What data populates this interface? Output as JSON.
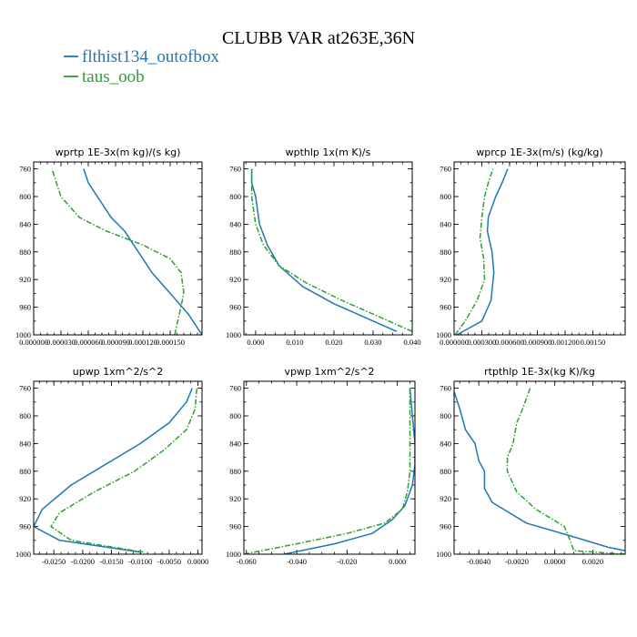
{
  "figure": {
    "title": "CLUBB VAR at263E,36N",
    "legend": [
      {
        "label": "flthist134_outofbox",
        "color": "#1f77b4",
        "dash": "solid"
      },
      {
        "label": "taus_oob",
        "color": "#2ca02c",
        "dash": "dashdot"
      }
    ]
  },
  "chart_data": [
    {
      "type": "line",
      "title": "wprtp  1E-3x(m kg)/(s kg)",
      "xlim": [
        0.0,
        0.000185
      ],
      "ylim": [
        1000,
        750
      ],
      "xticks": [
        0.0,
        3e-05,
        6e-05,
        9e-05,
        0.00012,
        0.00015
      ],
      "xtick_labels": [
        "0.000000",
        "0.000030",
        "0.000060",
        "0.000090",
        "0.000120",
        "0.000150"
      ],
      "yticks": [
        760,
        800,
        840,
        880,
        920,
        960,
        1000
      ],
      "ytick_labels": [
        "760",
        "800",
        "840",
        "880",
        "920",
        "960",
        "1000"
      ],
      "series": [
        {
          "name": "flthist134_outofbox",
          "x": [
            0.000185,
            0.00017,
            0.00015,
            0.00013,
            0.000115,
            0.0001,
            8.5e-05,
            7e-05,
            6e-05,
            5.5e-05
          ],
          "y": [
            1000,
            970,
            940,
            910,
            880,
            850,
            830,
            800,
            780,
            760
          ]
        },
        {
          "name": "taus_oob",
          "x": [
            0.000155,
            0.00016,
            0.000165,
            0.000162,
            0.00015,
            0.00012,
            8e-05,
            5e-05,
            3e-05,
            2e-05
          ],
          "y": [
            1000,
            970,
            940,
            910,
            890,
            870,
            850,
            830,
            800,
            760
          ]
        }
      ]
    },
    {
      "type": "line",
      "title": "wpthlp  1x(m K)/s",
      "xlim": [
        -0.003,
        0.04
      ],
      "ylim": [
        1000,
        750
      ],
      "xticks": [
        0.0,
        0.01,
        0.02,
        0.03,
        0.04
      ],
      "xtick_labels": [
        "0.000",
        "0.010",
        "0.020",
        "0.030",
        "0.040"
      ],
      "yticks": [
        760,
        800,
        840,
        880,
        920,
        960,
        1000
      ],
      "ytick_labels": [
        "760",
        "800",
        "840",
        "880",
        "920",
        "960",
        "1000"
      ],
      "series": [
        {
          "name": "flthist134_outofbox",
          "x": [
            0.036,
            0.03,
            0.02,
            0.012,
            0.006,
            0.003,
            0.001,
            0.0,
            -0.001,
            -0.001
          ],
          "y": [
            995,
            980,
            955,
            930,
            900,
            870,
            840,
            800,
            780,
            760
          ]
        },
        {
          "name": "taus_oob",
          "x": [
            0.04,
            0.032,
            0.022,
            0.013,
            0.006,
            0.002,
            0.0,
            -0.001,
            -0.001,
            -0.001
          ],
          "y": [
            995,
            975,
            950,
            925,
            900,
            870,
            840,
            800,
            780,
            760
          ]
        }
      ]
    },
    {
      "type": "line",
      "title": "wprcp  1E-3x(m/s) (kg/kg)",
      "xlim": [
        0.0,
        0.00185
      ],
      "ylim": [
        1000,
        750
      ],
      "xticks": [
        0.0,
        0.0003,
        0.0006,
        0.0009,
        0.0012,
        0.0015
      ],
      "xtick_labels": [
        "0.000000",
        "0.000300",
        "0.000600",
        "0.000900",
        "0.001200",
        "0.00150"
      ],
      "yticks": [
        760,
        800,
        840,
        880,
        920,
        960,
        1000
      ],
      "ytick_labels": [
        "760",
        "800",
        "840",
        "880",
        "920",
        "960",
        "1000"
      ],
      "series": [
        {
          "name": "flthist134_outofbox",
          "x": [
            3e-05,
            0.0003,
            0.0004,
            0.00043,
            0.00041,
            0.00036,
            0.00037,
            0.00045,
            0.00052,
            0.00058
          ],
          "y": [
            1000,
            980,
            950,
            910,
            880,
            850,
            830,
            800,
            780,
            760
          ]
        },
        {
          "name": "taus_oob",
          "x": [
            1e-05,
            0.00012,
            0.00025,
            0.00033,
            0.00032,
            0.00028,
            0.0003,
            0.00033,
            0.00037,
            0.00042
          ],
          "y": [
            1000,
            980,
            950,
            920,
            890,
            860,
            830,
            800,
            780,
            760
          ]
        }
      ]
    },
    {
      "type": "line",
      "title": "upwp  1xm^2/s^2",
      "xlim": [
        -0.0285,
        0.0007
      ],
      "ylim": [
        1000,
        750
      ],
      "xticks": [
        -0.025,
        -0.02,
        -0.015,
        -0.01,
        -0.005,
        0.0
      ],
      "xtick_labels": [
        "-0.0250",
        "-0.0200",
        "-0.0150",
        "-0.0100",
        "-0.0050",
        "0.0000"
      ],
      "yticks": [
        760,
        800,
        840,
        880,
        920,
        960,
        1000
      ],
      "ytick_labels": [
        "760",
        "800",
        "840",
        "880",
        "920",
        "960",
        "1000"
      ],
      "series": [
        {
          "name": "flthist134_outofbox",
          "x": [
            -0.01,
            -0.024,
            -0.0285,
            -0.027,
            -0.022,
            -0.016,
            -0.01,
            -0.005,
            -0.002,
            -0.001
          ],
          "y": [
            997,
            980,
            960,
            935,
            900,
            870,
            840,
            810,
            780,
            760
          ]
        },
        {
          "name": "taus_oob",
          "x": [
            -0.0095,
            -0.022,
            -0.0255,
            -0.024,
            -0.018,
            -0.011,
            -0.006,
            -0.002,
            -0.0005,
            -0.0002
          ],
          "y": [
            997,
            980,
            960,
            940,
            910,
            880,
            850,
            820,
            790,
            760
          ]
        }
      ]
    },
    {
      "type": "line",
      "title": "vpwp  1xm^2/s^2",
      "xlim": [
        -0.061,
        0.007
      ],
      "ylim": [
        1000,
        750
      ],
      "xticks": [
        -0.06,
        -0.04,
        -0.02,
        0.0
      ],
      "xtick_labels": [
        "-0.060",
        "-0.040",
        "-0.020",
        "0.000"
      ],
      "yticks": [
        760,
        800,
        840,
        880,
        920,
        960,
        1000
      ],
      "ytick_labels": [
        "760",
        "800",
        "840",
        "880",
        "920",
        "960",
        "1000"
      ],
      "series": [
        {
          "name": "flthist134_outofbox",
          "x": [
            -0.045,
            -0.025,
            -0.01,
            -0.002,
            0.003,
            0.006,
            0.007,
            0.007,
            0.006,
            0.005
          ],
          "y": [
            1000,
            985,
            970,
            950,
            930,
            900,
            870,
            840,
            800,
            760
          ]
        },
        {
          "name": "taus_oob",
          "x": [
            -0.061,
            -0.04,
            -0.02,
            -0.005,
            0.002,
            0.004,
            0.005,
            0.005,
            0.005,
            0.005
          ],
          "y": [
            1000,
            985,
            970,
            955,
            935,
            910,
            880,
            840,
            800,
            760
          ]
        }
      ]
    },
    {
      "type": "line",
      "title": "rtpthlp  1E-3x(kg K)/kg",
      "xlim": [
        -0.0053,
        0.0037
      ],
      "ylim": [
        1000,
        750
      ],
      "xticks": [
        -0.004,
        -0.002,
        0.0,
        0.002
      ],
      "xtick_labels": [
        "-0.0040",
        "-0.0020",
        "0.0000",
        "0.0020"
      ],
      "yticks": [
        760,
        800,
        840,
        880,
        920,
        960,
        1000
      ],
      "ytick_labels": [
        "760",
        "800",
        "840",
        "880",
        "920",
        "960",
        "1000"
      ],
      "series": [
        {
          "name": "flthist134_outofbox",
          "x": [
            0.0037,
            0.0028,
            0.001,
            -0.0015,
            -0.0033,
            -0.0037,
            -0.0037,
            -0.004,
            -0.0042,
            -0.0047,
            -0.005,
            -0.0053
          ],
          "y": [
            995,
            990,
            975,
            955,
            925,
            905,
            880,
            865,
            840,
            820,
            790,
            765
          ]
        },
        {
          "name": "taus_oob",
          "x": [
            0.0037,
            0.001,
            0.0008,
            0.0005,
            -0.001,
            -0.002,
            -0.0025,
            -0.0025,
            -0.0022,
            -0.002,
            -0.0017,
            -0.0013
          ],
          "y": [
            1000,
            995,
            980,
            960,
            935,
            910,
            880,
            860,
            840,
            810,
            790,
            760
          ]
        }
      ]
    }
  ]
}
